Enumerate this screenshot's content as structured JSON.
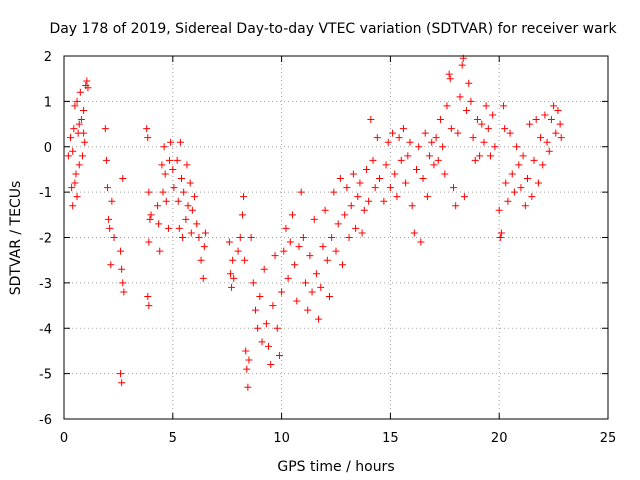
{
  "chart_data": {
    "type": "scatter",
    "title": "Day 178 of 2019, Sidereal Day-to-day VTEC variation (SDTVAR) for receiver wark",
    "xlabel": "GPS time / hours",
    "ylabel": "SDTVAR / TECUs",
    "xlim": [
      0,
      25
    ],
    "ylim": [
      -6,
      2
    ],
    "x_ticks": [
      "0",
      "5",
      "10",
      "15",
      "20",
      "25"
    ],
    "y_ticks": [
      "-6",
      "-5",
      "-4",
      "-3",
      "-2",
      "-1",
      "0",
      "1",
      "2"
    ],
    "grid": true,
    "marker": "+",
    "color": "#ff0000",
    "series": [
      {
        "name": "SDTVAR",
        "points": [
          [
            0.2,
            -0.2
          ],
          [
            0.3,
            0.2
          ],
          [
            0.35,
            -0.9
          ],
          [
            0.4,
            -1.3
          ],
          [
            0.45,
            0.4
          ],
          [
            0.5,
            0.9
          ],
          [
            0.55,
            -0.6
          ],
          [
            0.6,
            1.0
          ],
          [
            0.65,
            0.3
          ],
          [
            0.7,
            -0.4
          ],
          [
            0.75,
            1.2
          ],
          [
            0.8,
            0.6
          ],
          [
            0.85,
            -0.2
          ],
          [
            0.9,
            0.8
          ],
          [
            0.95,
            0.1
          ],
          [
            1.0,
            1.35
          ],
          [
            1.05,
            1.45
          ],
          [
            1.1,
            1.3
          ],
          [
            0.4,
            -0.1
          ],
          [
            0.5,
            -0.8
          ],
          [
            0.6,
            -1.1
          ],
          [
            0.7,
            0.5
          ],
          [
            0.9,
            0.3
          ],
          [
            1.9,
            0.4
          ],
          [
            1.95,
            -0.3
          ],
          [
            2.0,
            -0.9
          ],
          [
            2.05,
            -1.6
          ],
          [
            2.1,
            -1.8
          ],
          [
            2.15,
            -2.6
          ],
          [
            2.2,
            -1.2
          ],
          [
            2.3,
            -2.0
          ],
          [
            2.6,
            -2.3
          ],
          [
            2.65,
            -2.7
          ],
          [
            2.7,
            -3.0
          ],
          [
            2.75,
            -3.2
          ],
          [
            2.6,
            -5.0
          ],
          [
            2.65,
            -5.2
          ],
          [
            2.7,
            -0.7
          ],
          [
            3.8,
            0.4
          ],
          [
            3.85,
            0.2
          ],
          [
            3.9,
            -1.0
          ],
          [
            3.95,
            -1.6
          ],
          [
            3.9,
            -2.1
          ],
          [
            3.85,
            -3.3
          ],
          [
            3.9,
            -3.5
          ],
          [
            4.0,
            -1.5
          ],
          [
            4.3,
            -1.3
          ],
          [
            4.35,
            -1.7
          ],
          [
            4.4,
            -2.3
          ],
          [
            4.5,
            -0.4
          ],
          [
            4.55,
            -1.0
          ],
          [
            4.6,
            0.0
          ],
          [
            4.65,
            -0.6
          ],
          [
            4.7,
            -1.2
          ],
          [
            4.8,
            -1.8
          ],
          [
            4.85,
            -0.3
          ],
          [
            4.9,
            0.1
          ],
          [
            5.0,
            -0.5
          ],
          [
            5.05,
            -0.9
          ],
          [
            5.2,
            -0.3
          ],
          [
            5.25,
            -1.2
          ],
          [
            5.3,
            -1.8
          ],
          [
            5.35,
            0.1
          ],
          [
            5.4,
            -0.7
          ],
          [
            5.45,
            -2.0
          ],
          [
            5.5,
            -1.0
          ],
          [
            5.6,
            -1.6
          ],
          [
            5.65,
            -0.4
          ],
          [
            5.7,
            -1.3
          ],
          [
            5.8,
            -0.8
          ],
          [
            5.85,
            -1.9
          ],
          [
            5.9,
            -1.4
          ],
          [
            6.0,
            -1.1
          ],
          [
            6.1,
            -1.7
          ],
          [
            6.2,
            -2.0
          ],
          [
            6.3,
            -2.5
          ],
          [
            6.4,
            -2.9
          ],
          [
            6.45,
            -2.2
          ],
          [
            6.5,
            -1.9
          ],
          [
            7.6,
            -2.1
          ],
          [
            7.65,
            -2.8
          ],
          [
            7.7,
            -3.1
          ],
          [
            7.75,
            -2.5
          ],
          [
            7.8,
            -2.9
          ],
          [
            8.0,
            -2.3
          ],
          [
            8.1,
            -2.0
          ],
          [
            8.2,
            -1.5
          ],
          [
            8.25,
            -1.1
          ],
          [
            8.3,
            -2.5
          ],
          [
            8.35,
            -4.5
          ],
          [
            8.4,
            -4.9
          ],
          [
            8.45,
            -5.3
          ],
          [
            8.5,
            -4.7
          ],
          [
            8.6,
            -2.0
          ],
          [
            8.7,
            -3.0
          ],
          [
            8.8,
            -3.6
          ],
          [
            8.9,
            -4.0
          ],
          [
            9.0,
            -3.3
          ],
          [
            9.1,
            -4.3
          ],
          [
            9.2,
            -2.7
          ],
          [
            9.3,
            -3.9
          ],
          [
            9.4,
            -4.4
          ],
          [
            9.5,
            -4.8
          ],
          [
            9.6,
            -3.5
          ],
          [
            9.7,
            -2.4
          ],
          [
            9.8,
            -4.0
          ],
          [
            9.9,
            -4.6
          ],
          [
            10.0,
            -3.2
          ],
          [
            10.1,
            -2.3
          ],
          [
            10.2,
            -1.8
          ],
          [
            10.3,
            -2.9
          ],
          [
            10.4,
            -2.1
          ],
          [
            10.5,
            -1.5
          ],
          [
            10.6,
            -2.6
          ],
          [
            10.7,
            -3.4
          ],
          [
            10.8,
            -2.2
          ],
          [
            10.9,
            -1.0
          ],
          [
            11.0,
            -2.0
          ],
          [
            11.1,
            -3.0
          ],
          [
            11.2,
            -3.6
          ],
          [
            11.3,
            -2.4
          ],
          [
            11.4,
            -3.2
          ],
          [
            11.5,
            -1.6
          ],
          [
            11.6,
            -2.8
          ],
          [
            11.7,
            -3.8
          ],
          [
            11.8,
            -3.1
          ],
          [
            11.9,
            -2.2
          ],
          [
            12.0,
            -1.4
          ],
          [
            12.1,
            -2.5
          ],
          [
            12.2,
            -3.3
          ],
          [
            12.3,
            -2.0
          ],
          [
            12.4,
            -1.0
          ],
          [
            12.5,
            -2.3
          ],
          [
            12.6,
            -1.7
          ],
          [
            12.7,
            -0.7
          ],
          [
            12.8,
            -2.6
          ],
          [
            12.9,
            -1.5
          ],
          [
            13.0,
            -0.9
          ],
          [
            13.1,
            -2.0
          ],
          [
            13.2,
            -1.3
          ],
          [
            13.3,
            -0.6
          ],
          [
            13.4,
            -1.8
          ],
          [
            13.5,
            -1.1
          ],
          [
            13.6,
            -0.8
          ],
          [
            13.7,
            -1.9
          ],
          [
            13.8,
            -1.4
          ],
          [
            13.9,
            -0.5
          ],
          [
            14.0,
            -1.2
          ],
          [
            14.1,
            0.6
          ],
          [
            14.2,
            -0.3
          ],
          [
            14.3,
            -0.9
          ],
          [
            14.4,
            0.2
          ],
          [
            14.5,
            -0.7
          ],
          [
            14.7,
            -1.2
          ],
          [
            14.8,
            -0.4
          ],
          [
            14.9,
            0.1
          ],
          [
            15.0,
            -0.9
          ],
          [
            15.1,
            0.3
          ],
          [
            15.2,
            -0.6
          ],
          [
            15.3,
            -1.1
          ],
          [
            15.4,
            0.2
          ],
          [
            15.5,
            -0.3
          ],
          [
            15.6,
            0.4
          ],
          [
            15.7,
            -0.8
          ],
          [
            15.8,
            -0.2
          ],
          [
            15.9,
            0.1
          ],
          [
            16.0,
            -1.3
          ],
          [
            16.1,
            -1.9
          ],
          [
            16.2,
            -0.5
          ],
          [
            16.3,
            0.0
          ],
          [
            16.4,
            -2.1
          ],
          [
            16.5,
            -0.7
          ],
          [
            16.6,
            0.3
          ],
          [
            16.7,
            -1.1
          ],
          [
            16.8,
            -0.2
          ],
          [
            16.9,
            0.1
          ],
          [
            17.0,
            -0.4
          ],
          [
            17.1,
            0.2
          ],
          [
            17.2,
            -0.3
          ],
          [
            17.3,
            0.6
          ],
          [
            17.4,
            0.0
          ],
          [
            17.5,
            -0.6
          ],
          [
            17.6,
            0.9
          ],
          [
            17.7,
            1.6
          ],
          [
            17.75,
            1.5
          ],
          [
            17.8,
            0.4
          ],
          [
            17.9,
            -0.9
          ],
          [
            18.0,
            -1.3
          ],
          [
            18.1,
            0.3
          ],
          [
            18.2,
            1.1
          ],
          [
            18.3,
            1.8
          ],
          [
            18.35,
            1.95
          ],
          [
            18.4,
            -1.1
          ],
          [
            18.5,
            0.8
          ],
          [
            18.6,
            1.4
          ],
          [
            18.7,
            1.0
          ],
          [
            18.8,
            0.2
          ],
          [
            18.9,
            -0.3
          ],
          [
            19.0,
            0.6
          ],
          [
            19.1,
            -0.2
          ],
          [
            19.2,
            0.5
          ],
          [
            19.3,
            0.1
          ],
          [
            19.4,
            0.9
          ],
          [
            19.5,
            0.4
          ],
          [
            19.6,
            -0.2
          ],
          [
            19.7,
            0.7
          ],
          [
            19.8,
            0.0
          ],
          [
            20.0,
            -1.4
          ],
          [
            20.05,
            -2.0
          ],
          [
            20.1,
            -1.9
          ],
          [
            20.2,
            0.9
          ],
          [
            20.25,
            0.4
          ],
          [
            20.3,
            -0.8
          ],
          [
            20.4,
            -1.2
          ],
          [
            20.5,
            0.3
          ],
          [
            20.6,
            -0.6
          ],
          [
            20.7,
            -1.0
          ],
          [
            20.8,
            0.0
          ],
          [
            20.9,
            -0.4
          ],
          [
            21.0,
            -0.9
          ],
          [
            21.1,
            -0.2
          ],
          [
            21.2,
            -1.3
          ],
          [
            21.3,
            -0.7
          ],
          [
            21.4,
            0.5
          ],
          [
            21.5,
            -1.1
          ],
          [
            21.6,
            -0.3
          ],
          [
            21.7,
            0.6
          ],
          [
            21.8,
            -0.8
          ],
          [
            21.9,
            0.2
          ],
          [
            22.0,
            -0.4
          ],
          [
            22.1,
            0.7
          ],
          [
            22.2,
            0.1
          ],
          [
            22.3,
            -0.1
          ],
          [
            22.4,
            0.6
          ],
          [
            22.5,
            0.9
          ],
          [
            22.6,
            0.3
          ],
          [
            22.7,
            0.8
          ],
          [
            22.8,
            0.5
          ],
          [
            22.85,
            0.2
          ]
        ]
      }
    ]
  }
}
